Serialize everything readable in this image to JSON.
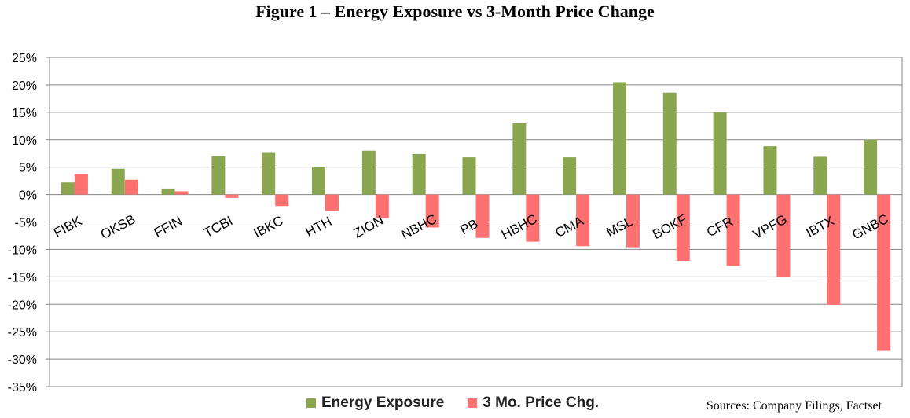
{
  "title": "Figure 1 – Energy Exposure vs 3-Month Price Change",
  "source": "Sources: Company Filings, Factset",
  "colors": {
    "energy": "#8aa64f",
    "price": "#ff7070"
  },
  "chart_data": {
    "type": "bar",
    "categories": [
      "FIBK",
      "OKSB",
      "FFIN",
      "TCBI",
      "IBKC",
      "HTH",
      "ZION",
      "NBHC",
      "PB",
      "HBHC",
      "CMA",
      "MSL",
      "BOKF",
      "CFR",
      "VPFG",
      "IBTX",
      "GNBC"
    ],
    "series": [
      {
        "name": "Energy Exposure",
        "values": [
          2.2,
          4.7,
          1.1,
          7.0,
          7.6,
          5.1,
          8.0,
          7.4,
          6.8,
          13.0,
          6.8,
          20.5,
          18.6,
          15.0,
          8.8,
          6.9,
          10.0
        ]
      },
      {
        "name": "3 Mo. Price Chg.",
        "values": [
          3.7,
          2.7,
          0.6,
          -0.6,
          -2.1,
          -3.0,
          -4.3,
          -6.0,
          -7.9,
          -8.6,
          -9.4,
          -9.6,
          -12.1,
          -13.0,
          -15.0,
          -20.1,
          -28.5
        ]
      }
    ],
    "ylim": [
      -35,
      25
    ],
    "yticks": [
      25,
      20,
      15,
      10,
      5,
      0,
      -5,
      -10,
      -15,
      -20,
      -25,
      -30,
      -35
    ],
    "ytick_labels": [
      "25%",
      "20%",
      "15%",
      "10%",
      "5%",
      "0%",
      "-5%",
      "-10%",
      "-15%",
      "-20%",
      "-25%",
      "-30%",
      "-35%"
    ],
    "grid": true,
    "legend": "bottom",
    "xlabel": "",
    "ylabel": ""
  }
}
